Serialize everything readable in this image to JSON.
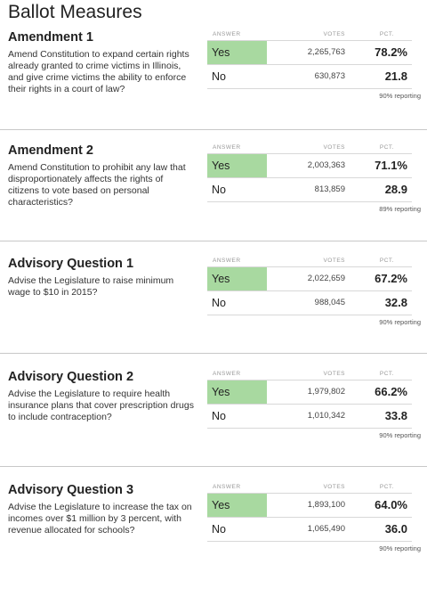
{
  "page": {
    "title": "Ballot Measures"
  },
  "headers": {
    "answer": "ANSWER",
    "votes": "VOTES",
    "pct": "PCT."
  },
  "measures": [
    {
      "title": "Amendment 1",
      "description": "Amend Constitution to expand certain rights already granted to crime victims in Illinois, and give crime victims the ability to enforce their rights in a court of law?",
      "results": [
        {
          "answer": "Yes",
          "votes": "2,265,763",
          "pct": "78.2%",
          "winner": true
        },
        {
          "answer": "No",
          "votes": "630,873",
          "pct": "21.8",
          "winner": false
        }
      ],
      "reporting": "90% reporting"
    },
    {
      "title": "Amendment 2",
      "description": "Amend Constitution to prohibit any law that disproportionately affects the rights of citizens to vote based on personal characteristics?",
      "results": [
        {
          "answer": "Yes",
          "votes": "2,003,363",
          "pct": "71.1%",
          "winner": true
        },
        {
          "answer": "No",
          "votes": "813,859",
          "pct": "28.9",
          "winner": false
        }
      ],
      "reporting": "89% reporting"
    },
    {
      "title": "Advisory Question 1",
      "description": "Advise the Legislature to raise minimum wage to $10 in 2015?",
      "results": [
        {
          "answer": "Yes",
          "votes": "2,022,659",
          "pct": "67.2%",
          "winner": true
        },
        {
          "answer": "No",
          "votes": "988,045",
          "pct": "32.8",
          "winner": false
        }
      ],
      "reporting": "90% reporting"
    },
    {
      "title": "Advisory Question 2",
      "description": "Advise the Legislature to require health insurance plans that cover prescription drugs to include contraception?",
      "results": [
        {
          "answer": "Yes",
          "votes": "1,979,802",
          "pct": "66.2%",
          "winner": true
        },
        {
          "answer": "No",
          "votes": "1,010,342",
          "pct": "33.8",
          "winner": false
        }
      ],
      "reporting": "90% reporting"
    },
    {
      "title": "Advisory Question 3",
      "description": "Advise the Legislature to increase the tax on incomes over $1 million by 3 percent, with revenue allocated for schools?",
      "results": [
        {
          "answer": "Yes",
          "votes": "1,893,100",
          "pct": "64.0%",
          "winner": true
        },
        {
          "answer": "No",
          "votes": "1,065,490",
          "pct": "36.0",
          "winner": false
        }
      ],
      "reporting": "90% reporting"
    }
  ]
}
